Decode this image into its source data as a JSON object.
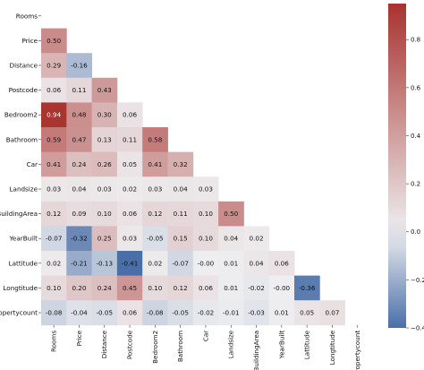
{
  "chart_data": {
    "type": "heatmap",
    "title": "",
    "variables": [
      "Rooms",
      "Price",
      "Distance",
      "Postcode",
      "Bedroom2",
      "Bathroom",
      "Car",
      "Landsize",
      "BuildingArea",
      "YearBuilt",
      "Lattitude",
      "Longtitude",
      "Propertycount"
    ],
    "matrix": [
      [],
      [
        0.5
      ],
      [
        0.29,
        -0.16
      ],
      [
        0.06,
        0.11,
        0.43
      ],
      [
        0.94,
        0.48,
        0.3,
        0.06
      ],
      [
        0.59,
        0.47,
        0.13,
        0.11,
        0.58
      ],
      [
        0.41,
        0.24,
        0.26,
        0.05,
        0.41,
        0.32
      ],
      [
        0.03,
        0.04,
        0.03,
        0.02,
        0.03,
        0.04,
        0.03
      ],
      [
        0.12,
        0.09,
        0.1,
        0.06,
        0.12,
        0.11,
        0.1,
        0.5
      ],
      [
        -0.07,
        -0.32,
        0.25,
        0.03,
        -0.05,
        0.15,
        0.1,
        0.04,
        0.02
      ],
      [
        0.02,
        -0.21,
        -0.13,
        -0.41,
        0.02,
        -0.07,
        -0.0,
        0.01,
        0.04,
        0.06
      ],
      [
        0.1,
        0.2,
        0.24,
        0.45,
        0.1,
        0.12,
        0.06,
        0.01,
        -0.02,
        -0.0,
        -0.36
      ],
      [
        -0.08,
        -0.04,
        -0.05,
        0.06,
        -0.08,
        -0.05,
        -0.02,
        -0.01,
        -0.03,
        0.01,
        0.05,
        0.07
      ]
    ],
    "matrix_text": [
      [],
      [
        "0.50"
      ],
      [
        "0.29",
        "-0.16"
      ],
      [
        "0.06",
        "0.11",
        "0.43"
      ],
      [
        "0.94",
        "0.48",
        "0.30",
        "0.06"
      ],
      [
        "0.59",
        "0.47",
        "0.13",
        "0.11",
        "0.58"
      ],
      [
        "0.41",
        "0.24",
        "0.26",
        "0.05",
        "0.41",
        "0.32"
      ],
      [
        "0.03",
        "0.04",
        "0.03",
        "0.02",
        "0.03",
        "0.04",
        "0.03"
      ],
      [
        "0.12",
        "0.09",
        "0.10",
        "0.06",
        "0.12",
        "0.11",
        "0.10",
        "0.50"
      ],
      [
        "-0.07",
        "-0.32",
        "0.25",
        "0.03",
        "-0.05",
        "0.15",
        "0.10",
        "0.04",
        "0.02"
      ],
      [
        "0.02",
        "-0.21",
        "-0.13",
        "-0.41",
        "0.02",
        "-0.07",
        "-0.00",
        "0.01",
        "0.04",
        "0.06"
      ],
      [
        "0.10",
        "0.20",
        "0.24",
        "0.45",
        "0.10",
        "0.12",
        "0.06",
        "0.01",
        "-0.02",
        "-0.00",
        "-0.36"
      ],
      [
        "-0.08",
        "-0.04",
        "-0.05",
        "0.06",
        "-0.08",
        "-0.05",
        "-0.02",
        "-0.01",
        "-0.03",
        "0.01",
        "0.05",
        "0.07"
      ]
    ],
    "mask": "upper-triangle-including-diagonal",
    "colorbar": {
      "min": -0.4,
      "max": 0.95,
      "ticks": [
        0.8,
        0.6,
        0.4,
        0.2,
        0.0,
        -0.2,
        -0.4
      ],
      "tick_labels": [
        "0.8",
        "0.6",
        "0.4",
        "0.2",
        "0.0",
        "−0.2",
        "−0.4"
      ],
      "colormap": "diverging blue-white-red"
    },
    "colors": {
      "negative": "#4a6fa8",
      "neutral": "#eeeef0",
      "positive": "#a8332f"
    }
  }
}
